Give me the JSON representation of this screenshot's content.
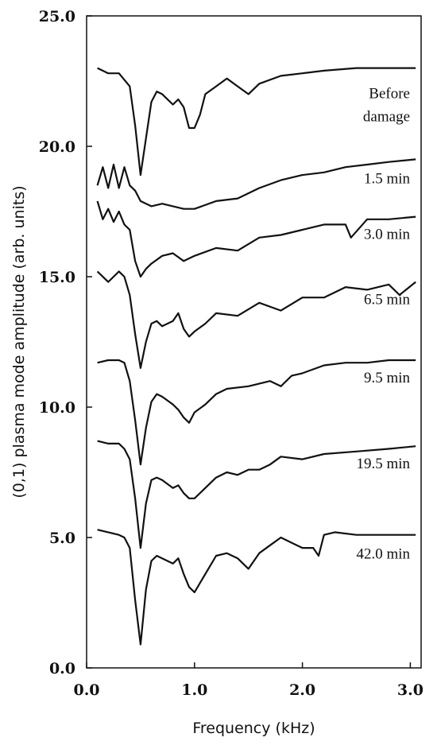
{
  "chart_data": {
    "type": "line",
    "title": "",
    "xlabel": "Frequency (kHz)",
    "ylabel": "(0,1) plasma mode amplitude (arb. units)",
    "xlim": [
      0.0,
      3.1
    ],
    "ylim": [
      0.0,
      25.0
    ],
    "x_ticks": [
      "0.0",
      "1.0",
      "2.0",
      "3.0"
    ],
    "y_ticks": [
      "0.0",
      "5.0",
      "10.0",
      "15.0",
      "20.0",
      "25.0"
    ],
    "grid": false,
    "legend": "none",
    "series": [
      {
        "name": "Before damage",
        "label_lines": [
          "Before",
          "damage"
        ],
        "x": [
          0.1,
          0.2,
          0.3,
          0.4,
          0.45,
          0.5,
          0.55,
          0.6,
          0.65,
          0.7,
          0.8,
          0.85,
          0.9,
          0.95,
          1.0,
          1.05,
          1.1,
          1.2,
          1.3,
          1.4,
          1.5,
          1.6,
          1.8,
          2.0,
          2.2,
          2.5,
          2.8,
          3.05
        ],
        "y": [
          23.0,
          22.8,
          22.8,
          22.3,
          20.8,
          18.9,
          20.3,
          21.7,
          22.1,
          22.0,
          21.6,
          21.8,
          21.5,
          20.7,
          20.7,
          21.2,
          22.0,
          22.3,
          22.6,
          22.3,
          22.0,
          22.4,
          22.7,
          22.8,
          22.9,
          23.0,
          23.0,
          23.0
        ]
      },
      {
        "name": "1.5 min",
        "x": [
          0.1,
          0.15,
          0.2,
          0.25,
          0.3,
          0.35,
          0.4,
          0.45,
          0.5,
          0.6,
          0.7,
          0.8,
          0.9,
          1.0,
          1.2,
          1.4,
          1.6,
          1.8,
          2.0,
          2.2,
          2.4,
          2.6,
          2.8,
          3.05
        ],
        "y": [
          18.5,
          19.2,
          18.4,
          19.3,
          18.4,
          19.2,
          18.5,
          18.3,
          17.9,
          17.7,
          17.8,
          17.7,
          17.6,
          17.6,
          17.9,
          18.0,
          18.4,
          18.7,
          18.9,
          19.0,
          19.2,
          19.3,
          19.4,
          19.5
        ]
      },
      {
        "name": "3.0 min",
        "x": [
          0.1,
          0.15,
          0.2,
          0.25,
          0.3,
          0.35,
          0.4,
          0.45,
          0.5,
          0.55,
          0.6,
          0.7,
          0.8,
          0.9,
          1.0,
          1.2,
          1.4,
          1.6,
          1.8,
          2.0,
          2.2,
          2.4,
          2.45,
          2.6,
          2.8,
          3.05
        ],
        "y": [
          17.9,
          17.2,
          17.6,
          17.1,
          17.5,
          17.0,
          16.8,
          15.6,
          15.0,
          15.3,
          15.5,
          15.8,
          15.9,
          15.6,
          15.8,
          16.1,
          16.0,
          16.5,
          16.6,
          16.8,
          17.0,
          17.0,
          16.5,
          17.2,
          17.2,
          17.3
        ]
      },
      {
        "name": "6.5 min",
        "x": [
          0.1,
          0.2,
          0.3,
          0.35,
          0.4,
          0.45,
          0.5,
          0.55,
          0.6,
          0.65,
          0.7,
          0.8,
          0.85,
          0.9,
          0.95,
          1.0,
          1.1,
          1.2,
          1.4,
          1.6,
          1.8,
          2.0,
          2.2,
          2.4,
          2.6,
          2.8,
          2.9,
          3.05
        ],
        "y": [
          15.2,
          14.8,
          15.2,
          15.0,
          14.3,
          12.8,
          11.5,
          12.5,
          13.2,
          13.3,
          13.1,
          13.3,
          13.6,
          13.0,
          12.7,
          12.9,
          13.2,
          13.6,
          13.5,
          14.0,
          13.7,
          14.2,
          14.2,
          14.6,
          14.5,
          14.7,
          14.3,
          14.8
        ]
      },
      {
        "name": "9.5 min",
        "x": [
          0.1,
          0.2,
          0.3,
          0.35,
          0.4,
          0.45,
          0.5,
          0.55,
          0.6,
          0.65,
          0.7,
          0.8,
          0.85,
          0.9,
          0.95,
          1.0,
          1.1,
          1.2,
          1.3,
          1.5,
          1.7,
          1.8,
          1.9,
          2.0,
          2.2,
          2.4,
          2.6,
          2.8,
          3.05
        ],
        "y": [
          11.7,
          11.8,
          11.8,
          11.7,
          11.0,
          9.5,
          7.8,
          9.2,
          10.2,
          10.5,
          10.4,
          10.1,
          9.9,
          9.6,
          9.4,
          9.8,
          10.1,
          10.5,
          10.7,
          10.8,
          11.0,
          10.8,
          11.2,
          11.3,
          11.6,
          11.7,
          11.7,
          11.8,
          11.8
        ]
      },
      {
        "name": "19.5 min",
        "x": [
          0.1,
          0.2,
          0.3,
          0.35,
          0.4,
          0.45,
          0.5,
          0.55,
          0.6,
          0.65,
          0.7,
          0.8,
          0.85,
          0.9,
          0.95,
          1.0,
          1.1,
          1.2,
          1.3,
          1.4,
          1.5,
          1.6,
          1.7,
          1.8,
          2.0,
          2.2,
          2.5,
          2.8,
          3.05
        ],
        "y": [
          8.7,
          8.6,
          8.6,
          8.4,
          8.0,
          6.5,
          4.6,
          6.3,
          7.2,
          7.3,
          7.2,
          6.9,
          7.0,
          6.7,
          6.5,
          6.5,
          6.9,
          7.3,
          7.5,
          7.4,
          7.6,
          7.6,
          7.8,
          8.1,
          8.0,
          8.2,
          8.3,
          8.4,
          8.5
        ]
      },
      {
        "name": "42.0 min",
        "x": [
          0.1,
          0.2,
          0.3,
          0.35,
          0.4,
          0.45,
          0.5,
          0.55,
          0.6,
          0.65,
          0.7,
          0.8,
          0.85,
          0.9,
          0.95,
          1.0,
          1.1,
          1.2,
          1.3,
          1.4,
          1.5,
          1.6,
          1.7,
          1.8,
          1.9,
          2.0,
          2.1,
          2.15,
          2.2,
          2.3,
          2.5,
          2.8,
          3.05
        ],
        "y": [
          5.3,
          5.2,
          5.1,
          5.0,
          4.6,
          2.6,
          0.9,
          3.0,
          4.1,
          4.3,
          4.2,
          4.0,
          4.2,
          3.6,
          3.1,
          2.9,
          3.6,
          4.3,
          4.4,
          4.2,
          3.8,
          4.4,
          4.7,
          5.0,
          4.8,
          4.6,
          4.6,
          4.3,
          5.1,
          5.2,
          5.1,
          5.1,
          5.1
        ]
      }
    ]
  }
}
